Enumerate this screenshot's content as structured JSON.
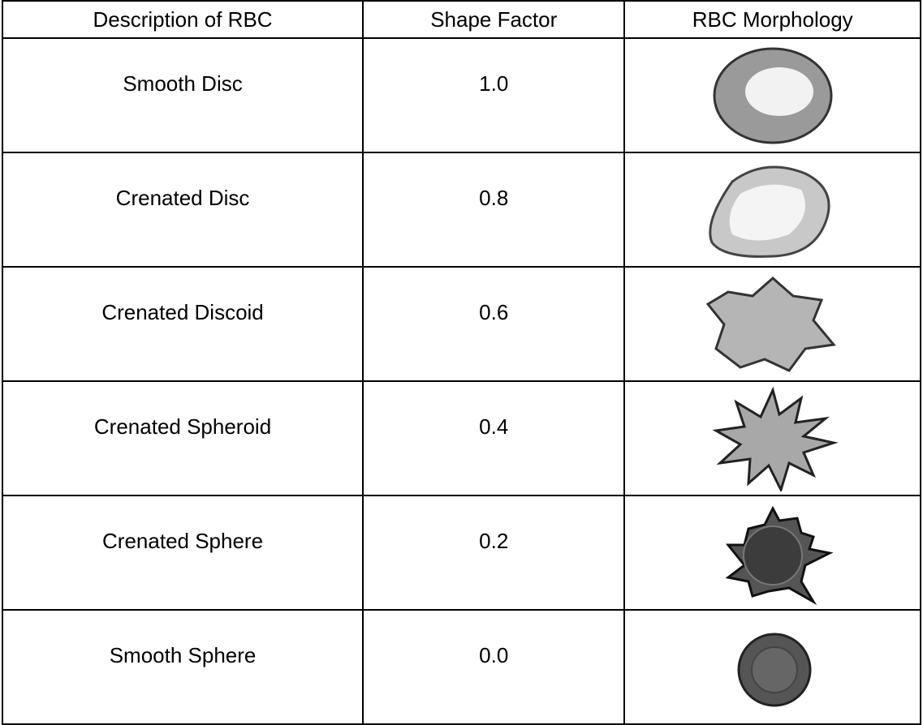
{
  "table": {
    "header": [
      "Description of RBC",
      "Shape Factor",
      "RBC Morphology"
    ],
    "rows": [
      [
        "Smooth Disc",
        "1.0"
      ],
      [
        "Crenated Disc",
        "0.8"
      ],
      [
        "Crenated Discoid",
        "0.6"
      ],
      [
        "Crenated Spheroid",
        "0.4"
      ],
      [
        "Crenated Sphere",
        "0.2"
      ],
      [
        "Smooth Sphere",
        "0.0"
      ]
    ]
  }
}
